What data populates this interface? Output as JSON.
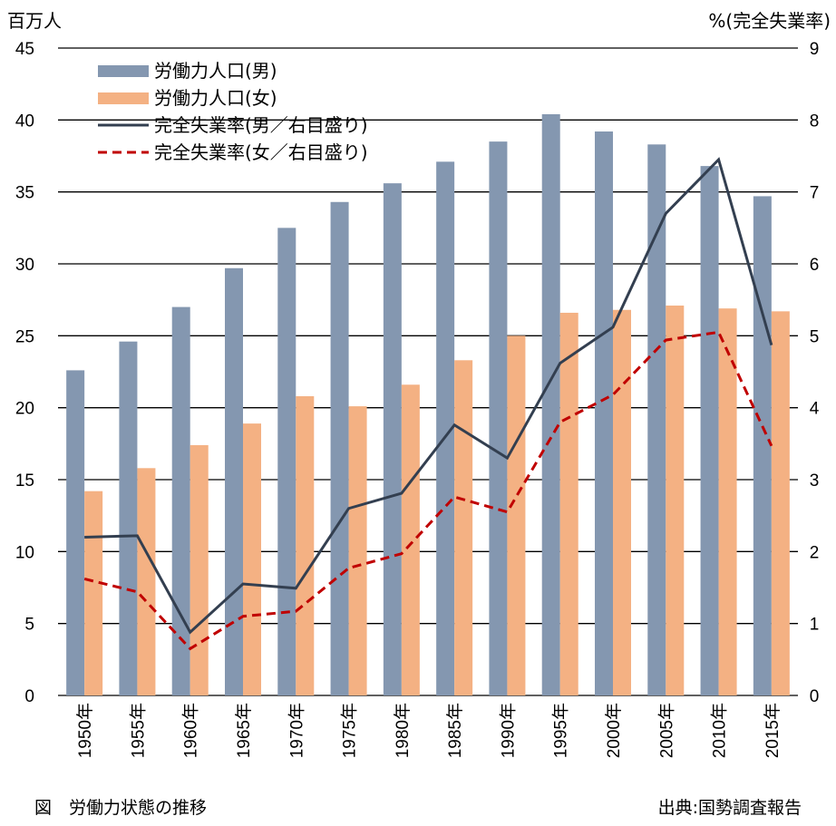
{
  "chart_data": {
    "type": "bar",
    "categories": [
      "1950年",
      "1955年",
      "1960年",
      "1965年",
      "1970年",
      "1975年",
      "1980年",
      "1985年",
      "1990年",
      "1995年",
      "2000年",
      "2005年",
      "2010年",
      "2015年"
    ],
    "series": [
      {
        "name": "労働力人口(男)",
        "type": "bar",
        "axis": "left",
        "color": "#8497B0",
        "values": [
          22.6,
          24.6,
          27.0,
          29.7,
          32.5,
          34.3,
          35.6,
          37.1,
          38.5,
          40.4,
          39.2,
          38.3,
          36.8,
          34.7
        ]
      },
      {
        "name": "労働力人口(女)",
        "type": "bar",
        "axis": "left",
        "color": "#F4B183",
        "values": [
          14.2,
          15.8,
          17.4,
          18.9,
          20.8,
          20.1,
          21.6,
          23.3,
          25.0,
          26.6,
          26.8,
          27.1,
          26.9,
          26.7
        ]
      },
      {
        "name": "完全失業率(男／右目盛り)",
        "type": "line",
        "axis": "right",
        "color": "#333F50",
        "dash": "solid",
        "values": [
          2.2,
          2.22,
          0.88,
          1.55,
          1.49,
          2.6,
          2.81,
          3.76,
          3.3,
          4.62,
          5.12,
          6.7,
          7.45,
          4.87
        ]
      },
      {
        "name": "完全失業率(女／右目盛り)",
        "type": "line",
        "axis": "right",
        "color": "#C00000",
        "dash": "dashed",
        "values": [
          1.62,
          1.44,
          0.65,
          1.1,
          1.17,
          1.77,
          1.97,
          2.76,
          2.55,
          3.8,
          4.18,
          4.94,
          5.05,
          3.47
        ]
      }
    ],
    "ylabel_left": "百万人",
    "ylabel_right": "%(完全失業率)",
    "ylim_left": [
      0,
      45
    ],
    "ylim_right": [
      0,
      9
    ],
    "yticks_left": [
      0,
      5,
      10,
      15,
      20,
      25,
      30,
      35,
      40,
      45
    ],
    "yticks_right": [
      0,
      1,
      2,
      3,
      4,
      5,
      6,
      7,
      8,
      9
    ],
    "grid": true,
    "legend_position": "top-left"
  },
  "caption": "図　労働力状態の推移",
  "source": "出典:国勢調査報告"
}
